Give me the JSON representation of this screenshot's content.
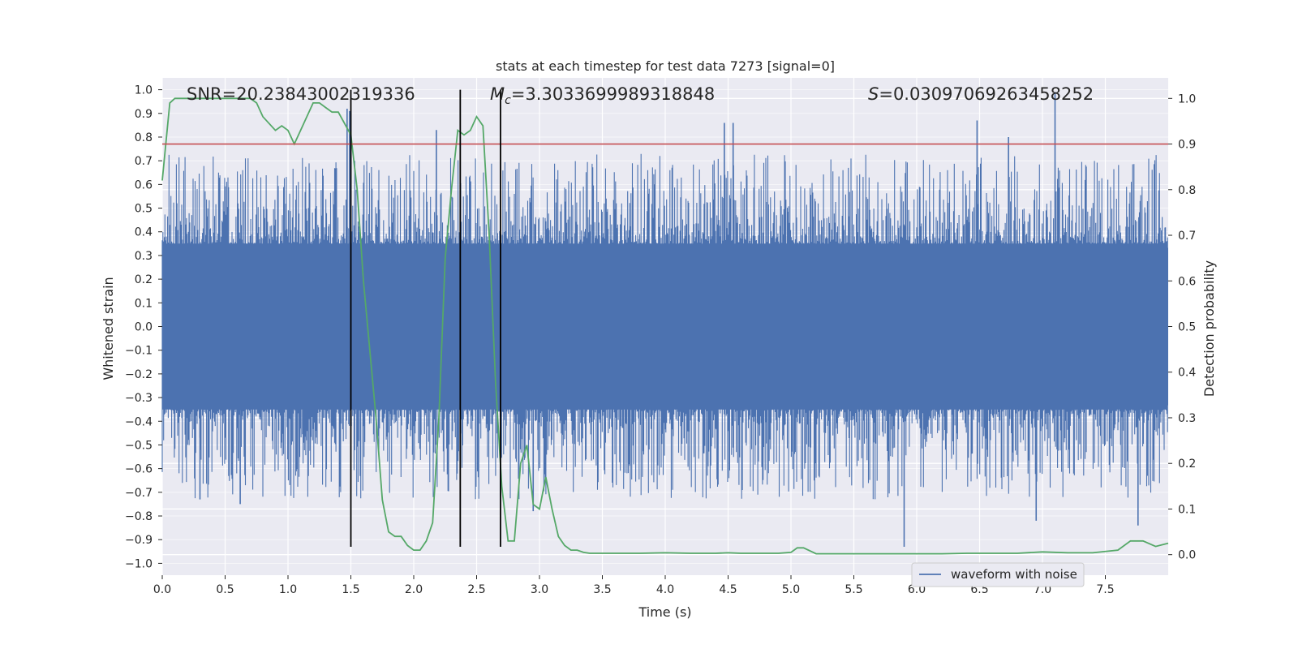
{
  "chart_data": {
    "type": "line",
    "title": "stats at each timestep for test data 7273 [signal=0]",
    "xlabel": "Time (s)",
    "ylabel": "Whitened strain",
    "y2label": "Detection probability",
    "xlim": [
      0.0,
      8.0
    ],
    "ylim": [
      -1.05,
      1.05
    ],
    "y2lim": [
      -0.045,
      1.045
    ],
    "xticks": [
      "0.0",
      "0.5",
      "1.0",
      "1.5",
      "2.0",
      "2.5",
      "3.0",
      "3.5",
      "4.0",
      "4.5",
      "5.0",
      "5.5",
      "6.0",
      "6.5",
      "7.0",
      "7.5"
    ],
    "yticks": [
      "1.0",
      "0.9",
      "0.8",
      "0.7",
      "0.6",
      "0.5",
      "0.4",
      "0.3",
      "0.2",
      "0.1",
      "0.0",
      "−0.1",
      "−0.2",
      "−0.3",
      "−0.4",
      "−0.5",
      "−0.6",
      "−0.7",
      "−0.8",
      "−0.9",
      "−1.0"
    ],
    "y2ticks": [
      "1.0",
      "0.9",
      "0.8",
      "0.7",
      "0.6",
      "0.5",
      "0.4",
      "0.3",
      "0.2",
      "0.1",
      "0.0"
    ],
    "grid": true,
    "legend_position": "lower-right",
    "annotations": {
      "snr": "SNR=20.23843002319336",
      "mc_symbol": "M",
      "mc_subscript": "c",
      "mc_value": "=3.3033699989318848",
      "s_symbol": "S",
      "s_value": "=0.03097069263458252"
    },
    "threshold": {
      "value": 0.9,
      "axis": "y2",
      "color": "#c44e52"
    },
    "vertical_lines": [
      1.5,
      2.37,
      2.69
    ],
    "vertical_lines_ylim": [
      -0.93,
      1.0
    ],
    "series": [
      {
        "name": "waveform with noise",
        "color": "#4c72b0",
        "axis": "y1",
        "style": "noise",
        "envelope": 0.35,
        "peaks": [
          {
            "x": 1.47,
            "y": 0.92
          },
          {
            "x": 1.49,
            "y": 0.91
          },
          {
            "x": 2.18,
            "y": 0.83
          },
          {
            "x": 4.47,
            "y": 0.86
          },
          {
            "x": 4.54,
            "y": 0.86
          },
          {
            "x": 6.48,
            "y": 0.87
          },
          {
            "x": 6.73,
            "y": 0.8
          },
          {
            "x": 7.1,
            "y": 0.99
          },
          {
            "x": 5.9,
            "y": -0.93
          },
          {
            "x": 7.76,
            "y": -0.84
          },
          {
            "x": 0.62,
            "y": -0.75
          },
          {
            "x": 2.95,
            "y": -0.78
          },
          {
            "x": 0.3,
            "y": -0.73
          },
          {
            "x": 6.95,
            "y": -0.82
          }
        ]
      },
      {
        "name": "",
        "color": "#55a868",
        "axis": "y2",
        "style": "line",
        "x": [
          0.0,
          0.06,
          0.1,
          0.2,
          0.5,
          0.7,
          0.75,
          0.8,
          0.9,
          0.95,
          1.0,
          1.05,
          1.1,
          1.2,
          1.25,
          1.3,
          1.35,
          1.4,
          1.5,
          1.55,
          1.6,
          1.7,
          1.75,
          1.8,
          1.85,
          1.9,
          1.95,
          2.0,
          2.05,
          2.1,
          2.15,
          2.2,
          2.25,
          2.3,
          2.35,
          2.4,
          2.45,
          2.5,
          2.55,
          2.6,
          2.65,
          2.7,
          2.75,
          2.8,
          2.85,
          2.9,
          2.95,
          3.0,
          3.05,
          3.1,
          3.15,
          3.2,
          3.25,
          3.3,
          3.35,
          3.4,
          3.5,
          3.6,
          3.8,
          4.0,
          4.2,
          4.4,
          4.5,
          4.6,
          4.7,
          4.8,
          4.9,
          5.0,
          5.05,
          5.1,
          5.2,
          5.4,
          5.6,
          5.8,
          6.0,
          6.2,
          6.4,
          6.6,
          6.8,
          7.0,
          7.2,
          7.4,
          7.6,
          7.7,
          7.8,
          7.9,
          8.0
        ],
        "y": [
          0.82,
          0.99,
          1.0,
          1.0,
          1.0,
          1.0,
          0.99,
          0.96,
          0.93,
          0.94,
          0.93,
          0.9,
          0.93,
          0.99,
          0.99,
          0.98,
          0.97,
          0.97,
          0.92,
          0.8,
          0.6,
          0.3,
          0.12,
          0.05,
          0.04,
          0.04,
          0.02,
          0.01,
          0.01,
          0.03,
          0.07,
          0.3,
          0.65,
          0.8,
          0.93,
          0.92,
          0.93,
          0.96,
          0.94,
          0.7,
          0.38,
          0.15,
          0.03,
          0.03,
          0.2,
          0.24,
          0.11,
          0.1,
          0.17,
          0.1,
          0.04,
          0.02,
          0.01,
          0.01,
          0.005,
          0.003,
          0.003,
          0.003,
          0.003,
          0.004,
          0.003,
          0.003,
          0.004,
          0.003,
          0.003,
          0.003,
          0.003,
          0.005,
          0.015,
          0.015,
          0.002,
          0.002,
          0.002,
          0.002,
          0.002,
          0.002,
          0.003,
          0.003,
          0.003,
          0.006,
          0.004,
          0.004,
          0.01,
          0.03,
          0.03,
          0.018,
          0.025
        ]
      }
    ]
  }
}
